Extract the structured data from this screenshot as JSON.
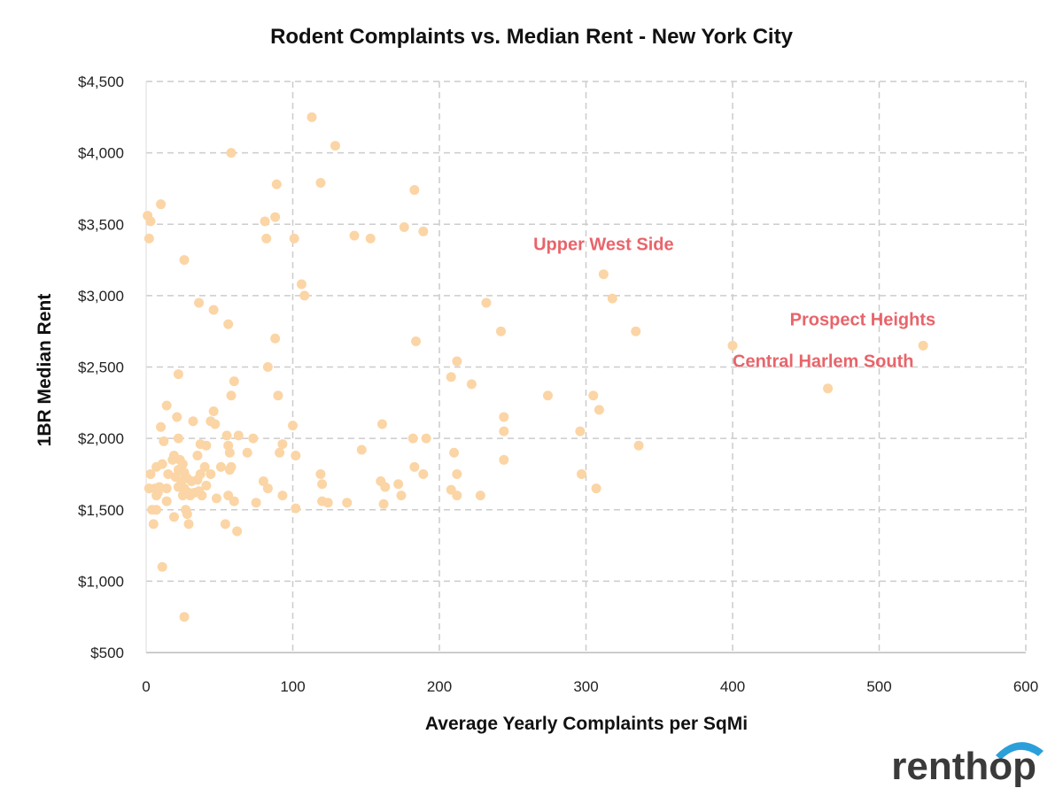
{
  "chart_data": {
    "type": "scatter",
    "title": "Rodent Complaints vs. Median Rent - New York City",
    "xlabel": "Average Yearly Complaints per SqMi",
    "ylabel": "1BR Median Rent",
    "xlim": [
      0,
      600
    ],
    "ylim": [
      500,
      4500
    ],
    "x_ticks": [
      "0",
      "100",
      "200",
      "300",
      "400",
      "500",
      "600"
    ],
    "y_ticks": [
      "$500",
      "$1,000",
      "$1,500",
      "$2,000",
      "$2,500",
      "$3,000",
      "$3,500",
      "$4,000",
      "$4,500"
    ],
    "grid": true,
    "point_color": "#fbd5a5",
    "annotation_color": "#e8646a",
    "annotations": [
      {
        "text": "Upper West Side",
        "x": 312,
        "y": 3150
      },
      {
        "text": "Prospect Heights",
        "x": 530,
        "y": 2650
      },
      {
        "text": "Central Harlem South",
        "x": 400,
        "y": 2650
      }
    ],
    "points": [
      [
        1,
        3560
      ],
      [
        3,
        3520
      ],
      [
        2,
        3400
      ],
      [
        10,
        3640
      ],
      [
        26,
        3250
      ],
      [
        58,
        4000
      ],
      [
        113,
        4250
      ],
      [
        129,
        4050
      ],
      [
        89,
        3780
      ],
      [
        119,
        3790
      ],
      [
        183,
        3740
      ],
      [
        88,
        3550
      ],
      [
        81,
        3520
      ],
      [
        82,
        3400
      ],
      [
        101,
        3400
      ],
      [
        142,
        3420
      ],
      [
        153,
        3400
      ],
      [
        176,
        3480
      ],
      [
        189,
        3450
      ],
      [
        106,
        3080
      ],
      [
        108,
        3000
      ],
      [
        36,
        2950
      ],
      [
        46,
        2900
      ],
      [
        56,
        2800
      ],
      [
        88,
        2700
      ],
      [
        184,
        2680
      ],
      [
        232,
        2950
      ],
      [
        242,
        2750
      ],
      [
        312,
        3150
      ],
      [
        318,
        2980
      ],
      [
        334,
        2750
      ],
      [
        400,
        2650
      ],
      [
        465,
        2350
      ],
      [
        530,
        2650
      ],
      [
        83,
        2500
      ],
      [
        212,
        2540
      ],
      [
        208,
        2430
      ],
      [
        222,
        2380
      ],
      [
        22,
        2450
      ],
      [
        60,
        2400
      ],
      [
        58,
        2300
      ],
      [
        90,
        2300
      ],
      [
        274,
        2300
      ],
      [
        305,
        2300
      ],
      [
        309,
        2200
      ],
      [
        244,
        2150
      ],
      [
        244,
        2050
      ],
      [
        296,
        2050
      ],
      [
        14,
        2230
      ],
      [
        21,
        2150
      ],
      [
        32,
        2120
      ],
      [
        44,
        2120
      ],
      [
        46,
        2190
      ],
      [
        47,
        2100
      ],
      [
        10,
        2080
      ],
      [
        100,
        2090
      ],
      [
        161,
        2100
      ],
      [
        182,
        2000
      ],
      [
        191,
        2000
      ],
      [
        22,
        2000
      ],
      [
        12,
        1980
      ],
      [
        55,
        2020
      ],
      [
        63,
        2020
      ],
      [
        73,
        2000
      ],
      [
        37,
        1960
      ],
      [
        41,
        1950
      ],
      [
        56,
        1950
      ],
      [
        93,
        1960
      ],
      [
        147,
        1920
      ],
      [
        210,
        1900
      ],
      [
        336,
        1950
      ],
      [
        244,
        1850
      ],
      [
        35,
        1880
      ],
      [
        57,
        1900
      ],
      [
        69,
        1900
      ],
      [
        91,
        1900
      ],
      [
        102,
        1880
      ],
      [
        19,
        1880
      ],
      [
        23,
        1850
      ],
      [
        18,
        1850
      ],
      [
        25,
        1820
      ],
      [
        11,
        1820
      ],
      [
        7,
        1800
      ],
      [
        40,
        1800
      ],
      [
        51,
        1800
      ],
      [
        58,
        1800
      ],
      [
        183,
        1800
      ],
      [
        22,
        1780
      ],
      [
        26,
        1760
      ],
      [
        15,
        1750
      ],
      [
        37,
        1750
      ],
      [
        44,
        1750
      ],
      [
        57,
        1780
      ],
      [
        119,
        1750
      ],
      [
        189,
        1750
      ],
      [
        212,
        1750
      ],
      [
        297,
        1750
      ],
      [
        3,
        1750
      ],
      [
        20,
        1730
      ],
      [
        28,
        1720
      ],
      [
        35,
        1710
      ],
      [
        24,
        1700
      ],
      [
        31,
        1700
      ],
      [
        80,
        1700
      ],
      [
        160,
        1700
      ],
      [
        172,
        1680
      ],
      [
        120,
        1680
      ],
      [
        41,
        1670
      ],
      [
        22,
        1660
      ],
      [
        26,
        1650
      ],
      [
        14,
        1650
      ],
      [
        9,
        1660
      ],
      [
        2,
        1650
      ],
      [
        6,
        1650
      ],
      [
        8,
        1620
      ],
      [
        29,
        1620
      ],
      [
        36,
        1630
      ],
      [
        83,
        1650
      ],
      [
        163,
        1660
      ],
      [
        208,
        1640
      ],
      [
        307,
        1650
      ],
      [
        25,
        1600
      ],
      [
        30,
        1600
      ],
      [
        38,
        1600
      ],
      [
        56,
        1600
      ],
      [
        93,
        1600
      ],
      [
        174,
        1600
      ],
      [
        212,
        1600
      ],
      [
        228,
        1600
      ],
      [
        7,
        1600
      ],
      [
        14,
        1560
      ],
      [
        33,
        1620
      ],
      [
        48,
        1580
      ],
      [
        60,
        1560
      ],
      [
        75,
        1550
      ],
      [
        120,
        1560
      ],
      [
        124,
        1550
      ],
      [
        137,
        1550
      ],
      [
        162,
        1540
      ],
      [
        102,
        1510
      ],
      [
        4,
        1500
      ],
      [
        7,
        1500
      ],
      [
        27,
        1500
      ],
      [
        28,
        1470
      ],
      [
        19,
        1450
      ],
      [
        5,
        1400
      ],
      [
        29,
        1400
      ],
      [
        54,
        1400
      ],
      [
        62,
        1350
      ],
      [
        11,
        1100
      ],
      [
        26,
        750
      ]
    ]
  },
  "brand": {
    "logo_text": "renthop",
    "logo_color": "#3a3a3a",
    "accent": "#2b9fd9"
  }
}
